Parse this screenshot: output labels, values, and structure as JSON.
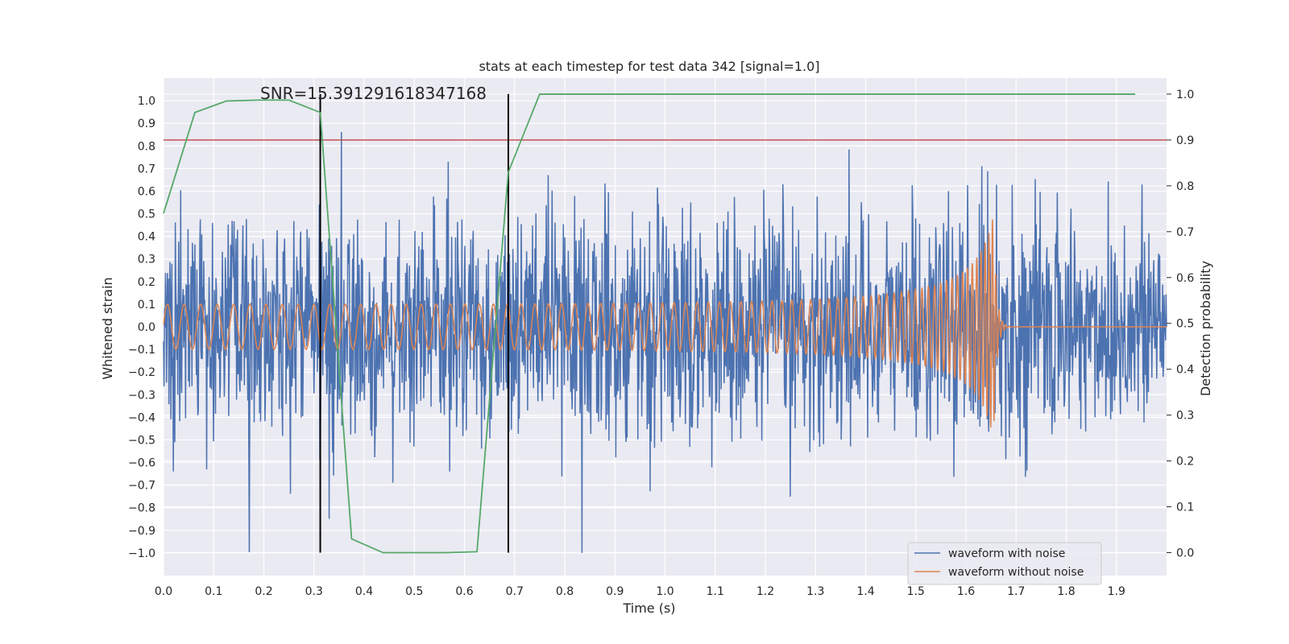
{
  "chart_data": {
    "type": "line",
    "title": "stats at each timestep for test data 342 [signal=1.0]",
    "xlabel": "Time (s)",
    "ylabel": "Whitened strain",
    "ylabel_right": "Detection probability",
    "xlim": [
      0.0,
      2.0
    ],
    "ylim": [
      -1.1,
      1.1
    ],
    "ylim_right": [
      -0.05,
      1.035
    ],
    "x_ticks": [
      "0.0",
      "0.1",
      "0.2",
      "0.3",
      "0.4",
      "0.5",
      "0.6",
      "0.7",
      "0.8",
      "0.9",
      "1.0",
      "1.1",
      "1.2",
      "1.3",
      "1.4",
      "1.5",
      "1.6",
      "1.7",
      "1.8",
      "1.9"
    ],
    "y_ticks": [
      "1.0",
      "0.9",
      "0.8",
      "0.7",
      "0.6",
      "0.5",
      "0.4",
      "0.3",
      "0.2",
      "0.1",
      "0.0",
      "−0.1",
      "−0.2",
      "−0.3",
      "−0.4",
      "−0.5",
      "−0.6",
      "−0.7",
      "−0.8",
      "−0.9",
      "−1.0"
    ],
    "y_right_ticks": [
      "1.0",
      "0.9",
      "0.8",
      "0.7",
      "0.6",
      "0.5",
      "0.4",
      "0.3",
      "0.2",
      "0.1",
      "0.0"
    ],
    "annotation": "SNR=15.391291618347168",
    "threshold": 0.9,
    "vlines": [
      0.3125,
      0.6875
    ],
    "grid": true,
    "legend_position": "lower-right",
    "series": [
      {
        "name": "waveform with noise",
        "color": "#4c72b0",
        "style": "noisy",
        "amplitude": 0.25,
        "peak": 0.95,
        "trough": -1.0,
        "x_start": 0.0,
        "x_end": 2.0
      },
      {
        "name": "waveform without noise",
        "color": "#dd8452",
        "style": "chirp",
        "x_start": 0.0,
        "x_end": 2.0,
        "merger_time": 1.655,
        "initial_amplitude": 0.1,
        "peak_amplitude": 0.5,
        "initial_frequency_hz": 30,
        "merger_frequency_hz": 150
      },
      {
        "name": "detection probability",
        "color": "#55a868",
        "axis": "right",
        "style": "line",
        "x": [
          0.0,
          0.0625,
          0.125,
          0.1875,
          0.25,
          0.3125,
          0.375,
          0.4375,
          0.5,
          0.5625,
          0.625,
          0.6875,
          0.75,
          0.8125,
          0.875,
          0.9375,
          1.0,
          1.0625,
          1.125,
          1.1875,
          1.25,
          1.3125,
          1.375,
          1.4375,
          1.5,
          1.5625,
          1.625,
          1.6875,
          1.75,
          1.8125,
          1.875,
          1.9375
        ],
        "values": [
          0.74,
          0.96,
          0.985,
          0.987,
          0.987,
          0.96,
          0.03,
          0.0,
          0.0,
          0.0,
          0.002,
          0.83,
          1.0,
          1.0,
          1.0,
          1.0,
          1.0,
          1.0,
          1.0,
          1.0,
          1.0,
          1.0,
          1.0,
          1.0,
          1.0,
          1.0,
          1.0,
          1.0,
          1.0,
          1.0,
          1.0,
          1.0
        ]
      }
    ]
  }
}
